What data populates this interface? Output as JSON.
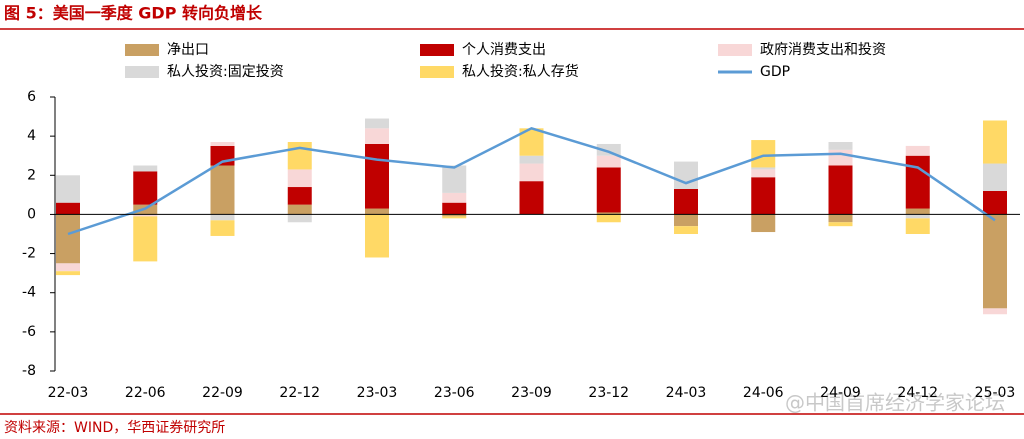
{
  "chart_data": {
    "type": "bar",
    "title": "图 5：美国一季度 GDP 转向负增长",
    "source": "资料来源：WIND，华西证券研究所",
    "watermark": "@中国首席经济学家论坛",
    "categories": [
      "22-03",
      "22-06",
      "22-09",
      "22-12",
      "23-03",
      "23-06",
      "23-09",
      "23-12",
      "24-03",
      "24-06",
      "24-09",
      "24-12",
      "25-03"
    ],
    "series": [
      {
        "name": "净出口",
        "color": "#c9a063",
        "values": [
          -2.5,
          0.5,
          2.5,
          0.5,
          0.3,
          -0.1,
          0.0,
          0.1,
          -0.6,
          -0.9,
          -0.4,
          0.3,
          -4.8
        ]
      },
      {
        "name": "个人消费支出",
        "color": "#c00000",
        "values": [
          0.6,
          1.7,
          1.0,
          0.9,
          3.3,
          0.6,
          1.7,
          2.3,
          1.3,
          1.9,
          2.5,
          2.7,
          1.2
        ]
      },
      {
        "name": "政府消费支出和投资",
        "color": "#f8d7d7",
        "values": [
          -0.4,
          -0.1,
          0.2,
          0.9,
          0.8,
          0.5,
          0.9,
          0.6,
          0.0,
          0.4,
          0.8,
          0.5,
          -0.3
        ]
      },
      {
        "name": "私人投资:固定投资",
        "color": "#d9d9d9",
        "values": [
          1.4,
          0.3,
          -0.3,
          -0.4,
          0.5,
          1.4,
          0.4,
          0.6,
          1.4,
          0.1,
          0.4,
          -0.2,
          1.4
        ]
      },
      {
        "name": "私人投资:私人存货",
        "color": "#ffd966",
        "values": [
          -0.2,
          -2.3,
          -0.8,
          1.4,
          -2.2,
          -0.1,
          1.4,
          -0.4,
          -0.4,
          1.4,
          -0.2,
          -0.8,
          2.2
        ]
      },
      {
        "name": "GDP",
        "type": "line",
        "color": "#5b9bd5",
        "values": [
          -1.0,
          0.3,
          2.7,
          3.4,
          2.8,
          2.4,
          4.4,
          3.2,
          1.6,
          3.0,
          3.1,
          2.4,
          -0.3
        ]
      }
    ],
    "ylim": [
      -8,
      6
    ],
    "yticks": [
      -8,
      -6,
      -4,
      -2,
      0,
      2,
      4,
      6
    ]
  }
}
